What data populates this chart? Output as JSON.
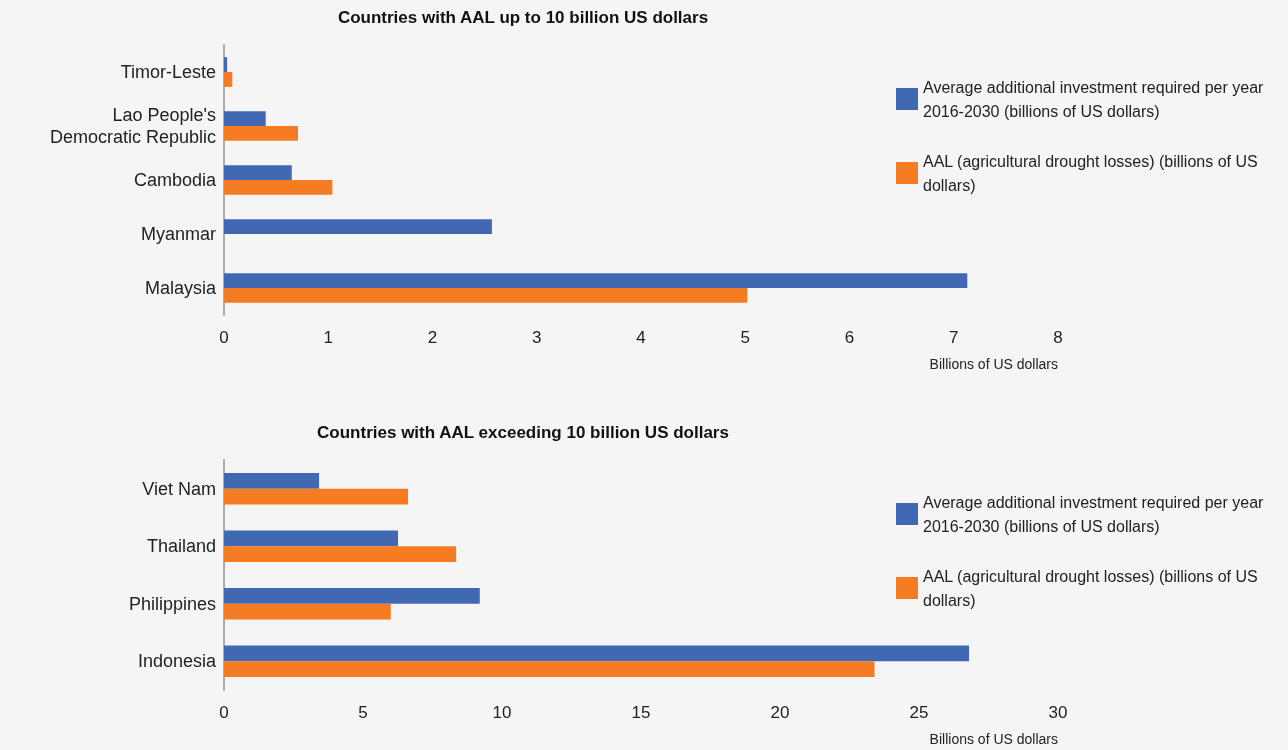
{
  "chart_data": [
    {
      "type": "bar",
      "orientation": "horizontal",
      "title": "Countries with AAL up to 10 billion US dollars",
      "xlabel": "Billions of US dollars",
      "categories": [
        "Timor-Leste",
        "Lao People's\nDemocratic Republic",
        "Cambodia",
        "Myanmar",
        "Malaysia"
      ],
      "series": [
        {
          "name": "Average additional investment required per year 2016-2030 (billions of US dollars)",
          "color": "#4169b3",
          "values": [
            0.03,
            0.4,
            0.65,
            2.57,
            7.13
          ]
        },
        {
          "name": "AAL (agricultural drought losses) (billions of US dollars)",
          "color": "#f57c22",
          "values": [
            0.08,
            0.71,
            1.04,
            null,
            5.02
          ]
        }
      ],
      "xlim": [
        0,
        8
      ],
      "xticks": [
        0,
        1,
        2,
        3,
        4,
        5,
        6,
        7,
        8
      ],
      "grid": false,
      "legend": "right"
    },
    {
      "type": "bar",
      "orientation": "horizontal",
      "title": "Countries with AAL exceeding 10 billion US dollars",
      "xlabel": "Billions of US dollars",
      "categories": [
        "Viet Nam",
        "Thailand",
        "Philippines",
        "Indonesia"
      ],
      "series": [
        {
          "name": "Average additional investment required per year 2016-2030 (billions of US dollars)",
          "color": "#4169b3",
          "values": [
            3.42,
            6.26,
            9.2,
            26.8
          ]
        },
        {
          "name": "AAL (agricultural drought losses) (billions of US dollars)",
          "color": "#f57c22",
          "values": [
            6.62,
            8.35,
            6.0,
            23.4
          ]
        }
      ],
      "xlim": [
        0,
        30
      ],
      "xticks": [
        0,
        5,
        10,
        15,
        20,
        25,
        30
      ],
      "grid": false,
      "legend": "right"
    }
  ]
}
